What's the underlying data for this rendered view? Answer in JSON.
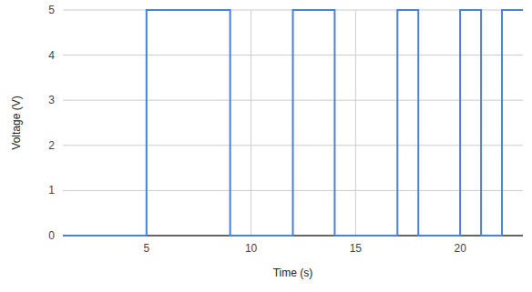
{
  "chart_data": {
    "type": "line",
    "x_label": "Time (s)",
    "y_label": "Voltage (V)",
    "x": [
      1,
      5,
      5,
      9,
      9,
      12,
      12,
      14,
      14,
      17,
      17,
      18,
      18,
      20,
      20,
      21,
      21,
      22,
      22,
      23
    ],
    "values": [
      0,
      0,
      5,
      5,
      0,
      0,
      5,
      5,
      0,
      0,
      5,
      5,
      0,
      0,
      5,
      5,
      0,
      0,
      5,
      5
    ],
    "color": "#4a7fdb",
    "xlim": [
      1,
      23
    ],
    "xticks": [
      5,
      10,
      15,
      20
    ],
    "ylim": [
      0,
      5
    ],
    "yticks": [
      0,
      1,
      2,
      3,
      4,
      5
    ],
    "grid": true
  }
}
